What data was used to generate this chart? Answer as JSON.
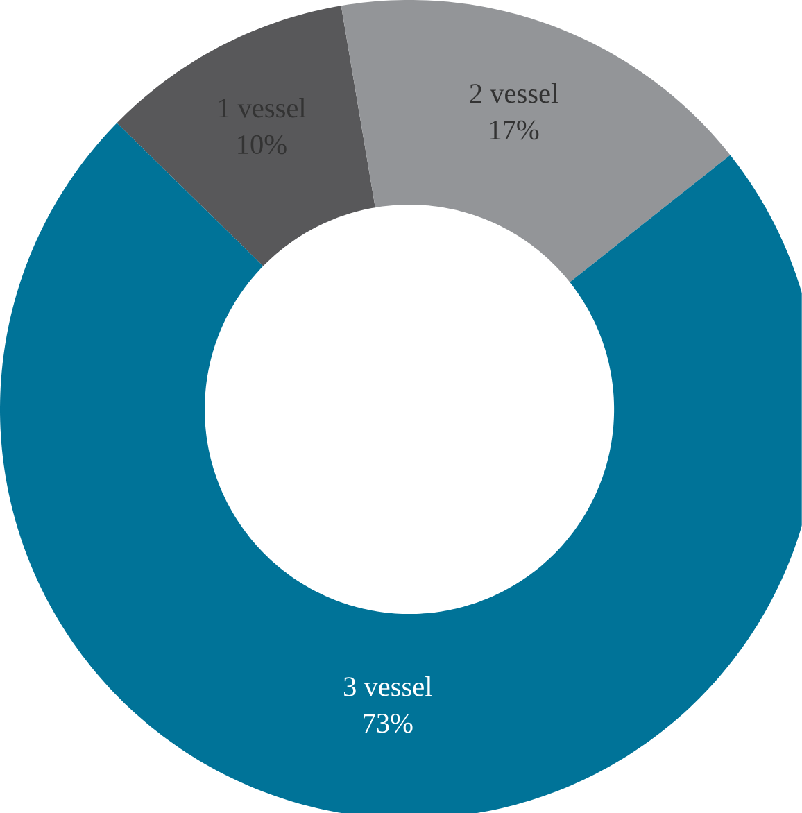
{
  "chart_data": {
    "type": "donut",
    "categories": [
      "1 vessel",
      "2 vessel",
      "3 vessel"
    ],
    "values": [
      10,
      17,
      73
    ],
    "colors": [
      "#58585a",
      "#939598",
      "#007398"
    ],
    "value_labels": [
      "10%",
      "17%",
      "73%"
    ]
  }
}
